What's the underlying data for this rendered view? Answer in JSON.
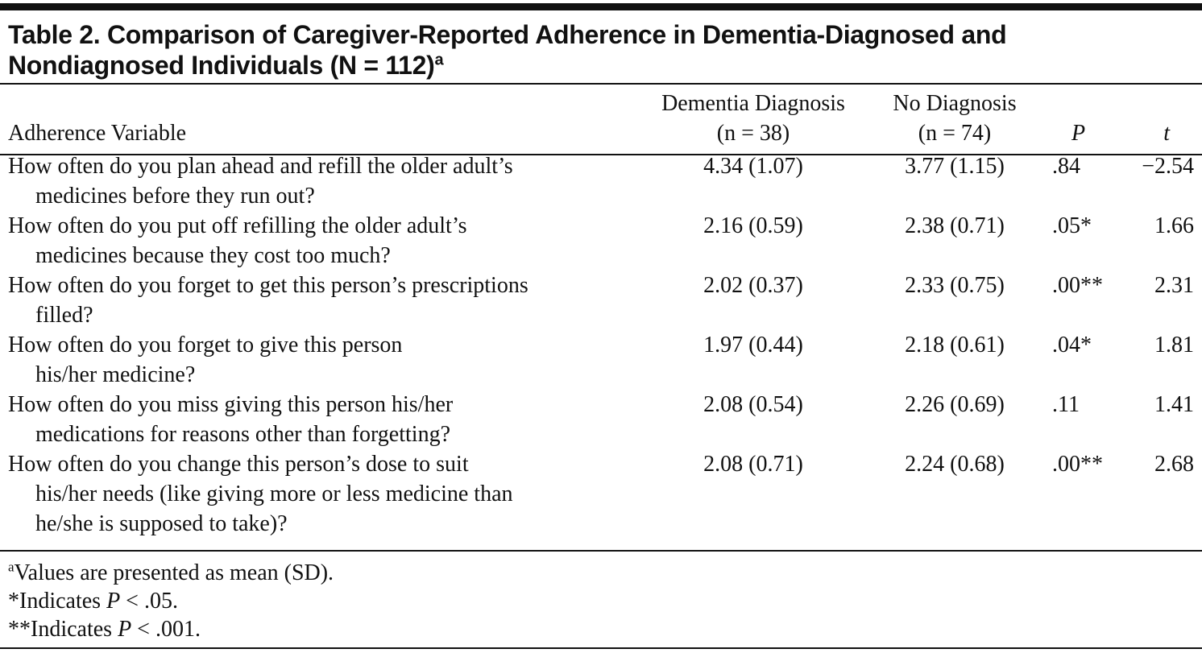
{
  "title": {
    "lines": [
      "Table 2. Comparison of Caregiver-Reported Adherence in Dementia-Diagnosed and",
      "Nondiagnosed Individuals (N = 112)"
    ],
    "sup": "a"
  },
  "table": {
    "header": [
      [
        "Adherence Variable"
      ],
      [
        "Dementia Diagnosis",
        "(n = 38)"
      ],
      [
        "No Diagnosis",
        "(n = 74)"
      ],
      [
        "P"
      ],
      [
        "t"
      ]
    ],
    "rows": [
      {
        "variable": [
          "How often do you plan ahead and refill the older adult’s",
          "medicines before they run out?"
        ],
        "dementia": "4.34 (1.07)",
        "no_diagnosis": "3.77 (1.15)",
        "p": ".84",
        "t": "−2.54"
      },
      {
        "variable": [
          "How often do you put off refilling the older adult’s",
          "medicines because they cost too much?"
        ],
        "dementia": "2.16 (0.59)",
        "no_diagnosis": "2.38 (0.71)",
        "p": ".05*",
        "t": "1.66"
      },
      {
        "variable": [
          "How often do you forget to get this person’s prescriptions",
          "filled?"
        ],
        "dementia": "2.02 (0.37)",
        "no_diagnosis": "2.33 (0.75)",
        "p": ".00**",
        "t": "2.31"
      },
      {
        "variable": [
          "How often do you forget to give this person",
          "his/her medicine?"
        ],
        "dementia": "1.97 (0.44)",
        "no_diagnosis": "2.18 (0.61)",
        "p": ".04*",
        "t": "1.81"
      },
      {
        "variable": [
          "How often do you miss giving this person his/her",
          "medications for reasons other than forgetting?"
        ],
        "dementia": "2.08 (0.54)",
        "no_diagnosis": "2.26 (0.69)",
        "p": ".11",
        "t": "1.41"
      },
      {
        "variable": [
          "How often do you change this person’s dose to suit",
          "his/her needs (like giving more or less medicine than",
          "he/she is supposed to take)?"
        ],
        "dementia": "2.08 (0.71)",
        "no_diagnosis": "2.24 (0.68)",
        "p": ".00**",
        "t": "2.68"
      }
    ]
  },
  "footnotes": [
    {
      "sup": "a",
      "text": "Values are presented as mean (SD)."
    },
    {
      "text": "*Indicates ",
      "italic": "P",
      "after": " < .05."
    },
    {
      "text": "**Indicates ",
      "italic": "P",
      "after": " < .001."
    }
  ]
}
